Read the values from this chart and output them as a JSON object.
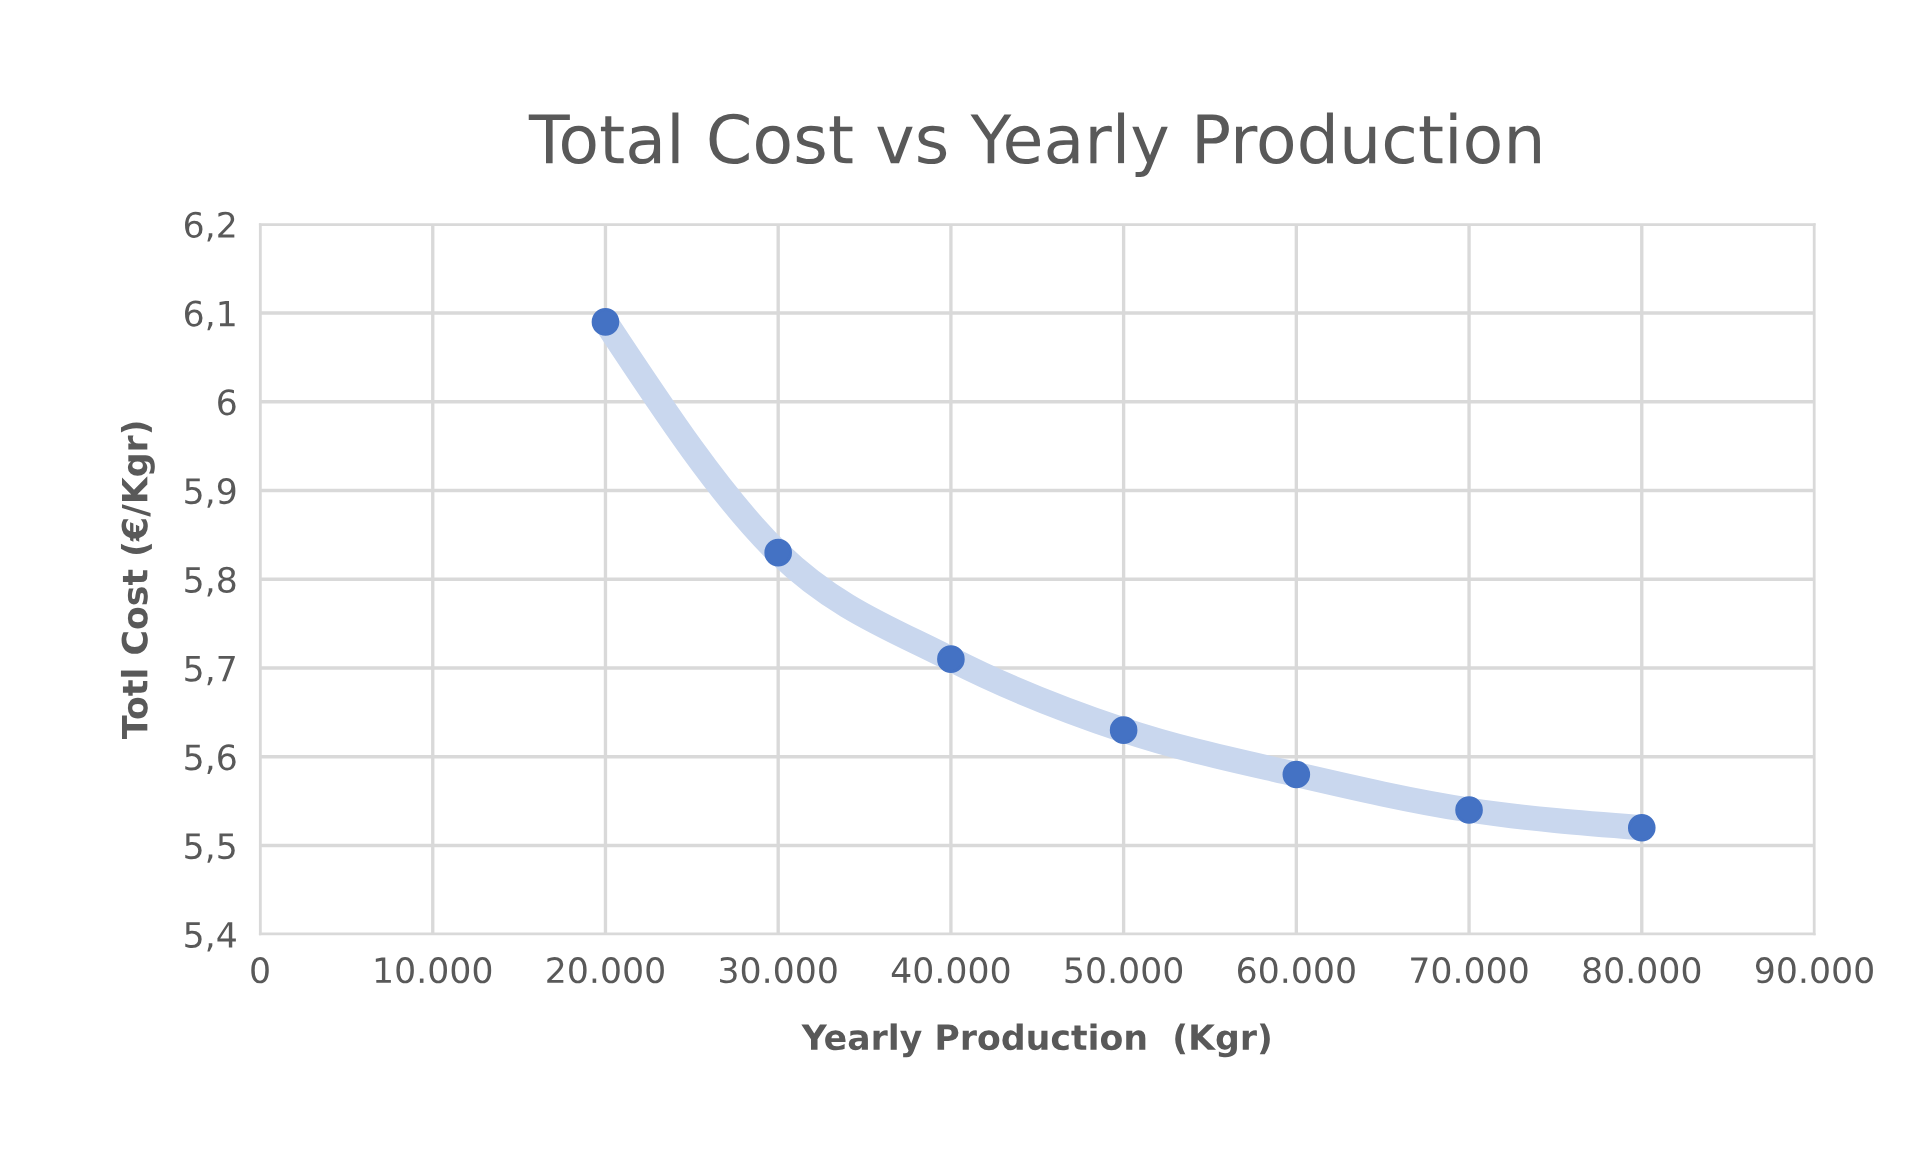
{
  "chart_data": {
    "type": "scatter",
    "title": "Total Cost vs Yearly Production",
    "xlabel": "Yearly Production  (Kgr)",
    "ylabel": "Totl Cost (€/Kgr)",
    "x": [
      20000,
      30000,
      40000,
      50000,
      60000,
      70000,
      80000
    ],
    "series": [
      {
        "type": "line",
        "color": "#c9d7ee",
        "values": [
          6.09,
          5.83,
          5.71,
          5.63,
          5.58,
          5.54,
          5.52
        ]
      },
      {
        "color": "#4472c4",
        "marker": "circle",
        "values": [
          6.09,
          5.83,
          5.71,
          5.63,
          5.58,
          5.54,
          5.52
        ]
      }
    ],
    "xlim": [
      0,
      90000
    ],
    "xticks": [
      0,
      {
        "value": 10000,
        "label": "10.000"
      },
      {
        "value": 20000,
        "label": "20.000"
      },
      {
        "value": 30000,
        "label": "30.000"
      },
      {
        "value": 40000,
        "label": "40.000"
      },
      {
        "value": 50000,
        "label": "50.000"
      },
      {
        "value": 60000,
        "label": "60.000"
      },
      {
        "value": 70000,
        "label": "70.000"
      },
      {
        "value": 80000,
        "label": "80.000"
      },
      {
        "value": 90000,
        "label": "90.000"
      }
    ],
    "ylim": [
      5.4,
      6.2
    ],
    "yticks": [
      {
        "value": 5.4,
        "label": "5,4"
      },
      {
        "value": 5.5,
        "label": "5,5"
      },
      {
        "value": 5.6,
        "label": "5,6"
      },
      {
        "value": 5.7,
        "label": "5,7"
      },
      {
        "value": 5.8,
        "label": "5,8"
      },
      {
        "value": 5.9,
        "label": "5,9"
      },
      6,
      {
        "value": 6.1,
        "label": "6,1"
      },
      {
        "value": 6.2,
        "label": "6,2"
      }
    ],
    "grid": true
  }
}
